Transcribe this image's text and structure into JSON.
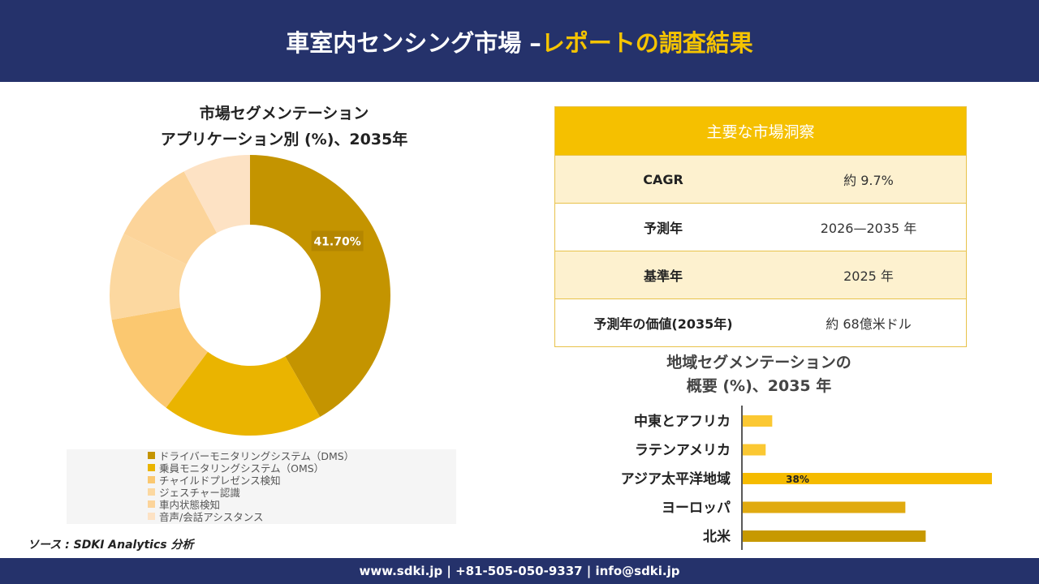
{
  "header": {
    "title_main": "車室内センシング市場 –",
    "title_accent": "レポートの調査結果"
  },
  "colors": {
    "header_bg": "#25326b",
    "accent": "#f5c000"
  },
  "chart_data": [
    {
      "type": "pie",
      "title_line1": "市場セグメンテーション",
      "title_line2": "アプリケーション別 (%)、2035年",
      "hole": "donut",
      "categories": [
        "ドライバーモニタリングシステム（DMS）",
        "乗員モニタリングシステム（OMS）",
        "チャイルドプレゼンス検知",
        "ジェスチャー認識",
        "車内状態検知",
        "音声/会話アシスタンス"
      ],
      "values": [
        41.7,
        18.5,
        12.0,
        10.0,
        10.0,
        7.8
      ],
      "colors": [
        "#c49400",
        "#eab400",
        "#fbc870",
        "#fcd8a0",
        "#fcd49a",
        "#fde2c4"
      ],
      "data_labels": [
        "41.70%",
        "",
        "",
        "",
        "",
        ""
      ]
    },
    {
      "type": "bar",
      "orientation": "horizontal",
      "title_line1": "地域セグメンテーションの",
      "title_line2": "概要 (%)、2035 年",
      "categories": [
        "中東とアフリカ",
        "ラテンアメリカ",
        "アジア太平洋地域",
        "ヨーロッパ",
        "北米"
      ],
      "values": [
        4.5,
        3.5,
        38,
        24.8,
        27.9
      ],
      "colors": [
        "#fbc833",
        "#fbc833",
        "#f5bb00",
        "#e0aa10",
        "#c79900"
      ],
      "data_labels": [
        "",
        "",
        "38%",
        "",
        ""
      ],
      "xlim": [
        0,
        38
      ]
    }
  ],
  "insights": {
    "header": "主要な市場洞察",
    "rows": [
      {
        "label": "CAGR",
        "value": "約 9.7%"
      },
      {
        "label": "予測年",
        "value": "2026—2035 年"
      },
      {
        "label": "基準年",
        "value": "2025 年"
      },
      {
        "label": "予測年の価値(2035年)",
        "value": "約 68億米ドル"
      }
    ]
  },
  "source": "ソース : SDKI Analytics 分析",
  "footer": {
    "contact": "www.sdki.jp | +81-505-050-9337 | info@sdki.jp"
  }
}
